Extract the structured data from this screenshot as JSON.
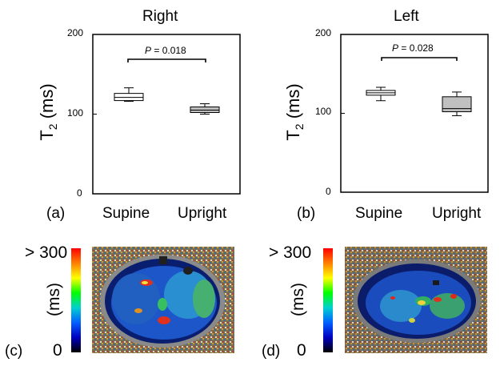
{
  "panels": {
    "a": "(a)",
    "b": "(b)",
    "c": "(c)",
    "d": "(d)"
  },
  "chart_data": [
    {
      "type": "box",
      "title": "Right",
      "ylabel_main": "T",
      "ylabel_sub": "2",
      "ylabel_unit": " (ms)",
      "ylim": [
        0,
        200
      ],
      "yticks": [
        "0",
        "100",
        "200"
      ],
      "categories": [
        "Supine",
        "Upright"
      ],
      "boxes": [
        {
          "category": "Supine",
          "min": 116,
          "q1": 117,
          "median": 121,
          "q3": 126,
          "max": 133,
          "fill": "#ffffff"
        },
        {
          "category": "Upright",
          "min": 100,
          "q1": 102,
          "median": 105,
          "q3": 109,
          "max": 113,
          "fill": "#c0c0c0"
        }
      ],
      "annotation": {
        "italic": "P",
        "rest": " = 0.018"
      }
    },
    {
      "type": "box",
      "title": "Left",
      "ylabel_main": "T",
      "ylabel_sub": "2",
      "ylabel_unit": " (ms)",
      "ylim": [
        0,
        200
      ],
      "yticks": [
        "0",
        "100",
        "200"
      ],
      "categories": [
        "Supine",
        "Upright"
      ],
      "boxes": [
        {
          "category": "Supine",
          "min": 116,
          "q1": 123,
          "median": 126,
          "q3": 129,
          "max": 133,
          "fill": "#ffffff"
        },
        {
          "category": "Upright",
          "min": 97,
          "q1": 102,
          "median": 106,
          "q3": 121,
          "max": 127,
          "fill": "#c0c0c0"
        }
      ],
      "annotation": {
        "italic": "P",
        "rest": " = 0.028"
      }
    }
  ],
  "colorbar": {
    "top_label": "> 300",
    "unit_label": "(ms)",
    "bottom_label": "0",
    "stops": [
      "#ff0000",
      "#ff8000",
      "#ffff00",
      "#00ff00",
      "#00d0d0",
      "#0060ff",
      "#0000c0",
      "#000000"
    ]
  }
}
